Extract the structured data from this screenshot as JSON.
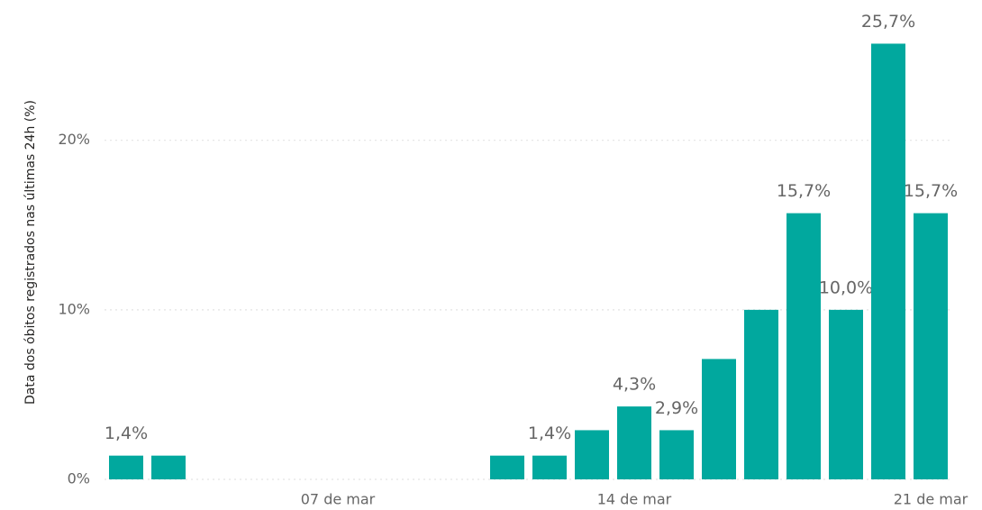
{
  "chart_data": {
    "type": "bar",
    "y_label": "Data dos óbitos registrados nas últimas 24h (%)",
    "categories": [
      null,
      null,
      null,
      null,
      null,
      "07 de mar",
      null,
      null,
      null,
      null,
      null,
      null,
      "14 de mar",
      null,
      null,
      null,
      null,
      null,
      null,
      "21 de mar"
    ],
    "values": [
      1.4,
      1.4,
      null,
      null,
      null,
      null,
      null,
      null,
      null,
      1.4,
      1.4,
      2.9,
      4.3,
      2.9,
      7.1,
      10.0,
      15.7,
      10.0,
      25.7,
      15.7
    ],
    "value_labels": [
      "1,4%",
      null,
      null,
      null,
      null,
      null,
      null,
      null,
      null,
      null,
      "1,4%",
      null,
      "4,3%",
      "2,9%",
      null,
      null,
      "15,7%",
      "10,0%",
      "25,7%",
      "15,7%"
    ],
    "color": "#01a89e",
    "ylim": [
      0,
      27
    ],
    "yticks": [
      {
        "value": 0,
        "label": "0%"
      },
      {
        "value": 10,
        "label": "10%"
      },
      {
        "value": 20,
        "label": "20%"
      }
    ],
    "grid": true
  }
}
